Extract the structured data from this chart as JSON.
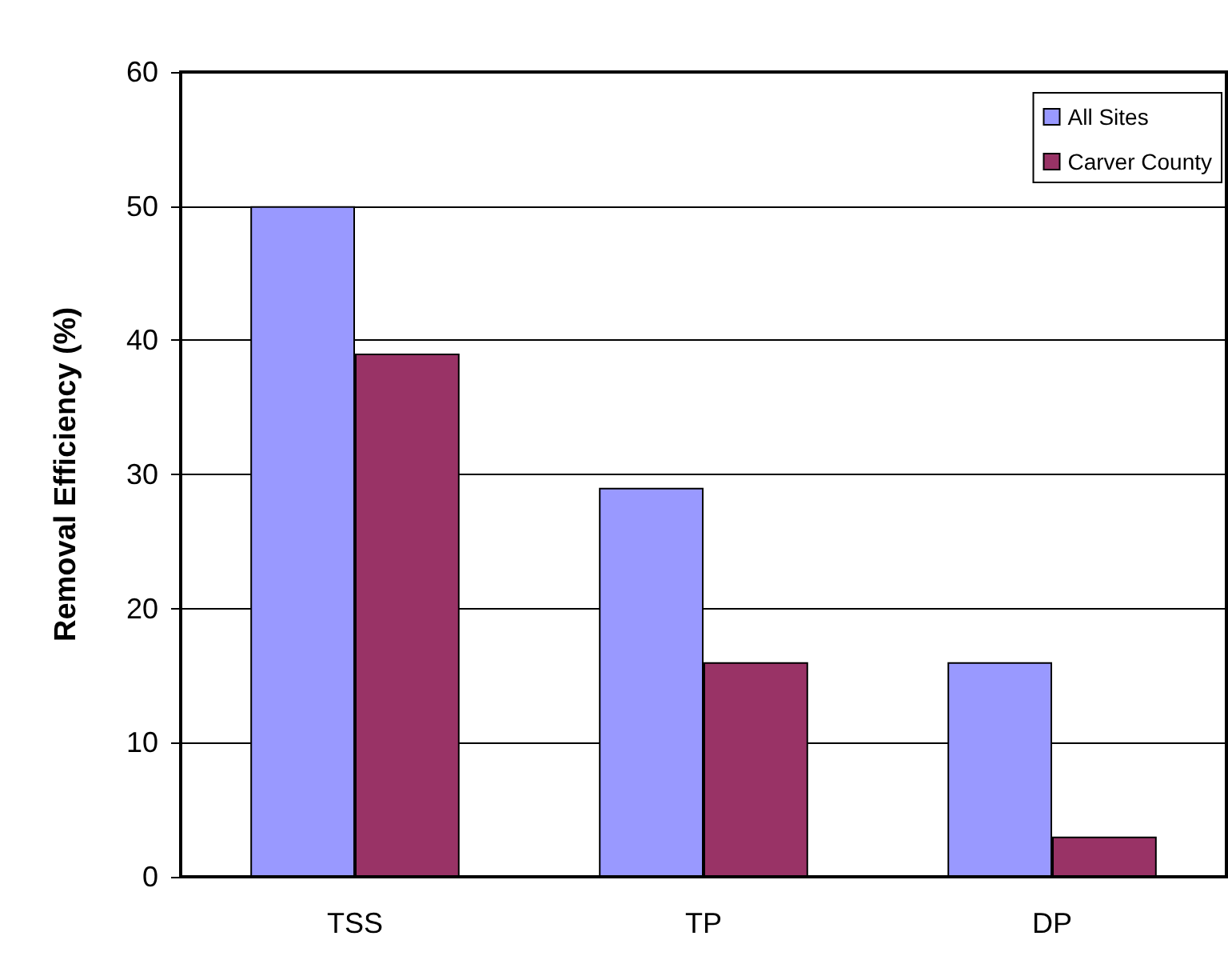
{
  "chart_data": {
    "type": "bar",
    "ylabel": "Removal Efficiency (%)",
    "categories": [
      "TSS",
      "TP",
      "DP"
    ],
    "series": [
      {
        "name": "All Sites",
        "color": "#9999ff",
        "values": [
          50,
          29,
          16
        ]
      },
      {
        "name": "Carver County",
        "color": "#993366",
        "values": [
          39,
          16,
          3
        ]
      }
    ],
    "ylim": [
      0,
      60
    ],
    "yticks": [
      0,
      10,
      20,
      30,
      40,
      50,
      60
    ],
    "grid": "y",
    "legend": "top right"
  }
}
